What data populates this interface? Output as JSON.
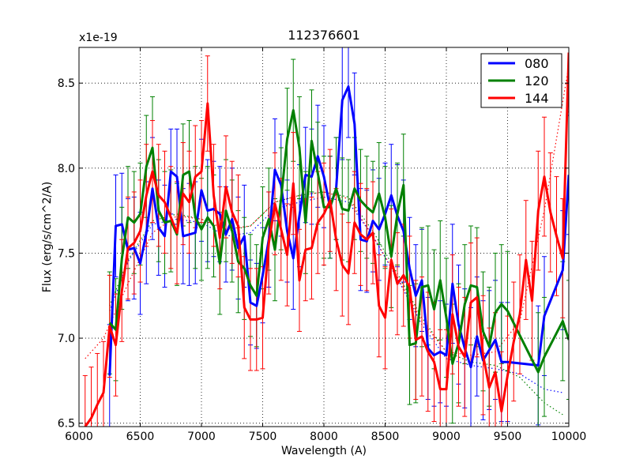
{
  "chart_data": {
    "type": "line",
    "title": "112376601",
    "xlabel": "Wavelength (A)",
    "ylabel": "Flux (erg/s/cm^2/A)",
    "offset_label": "x1e-19",
    "xlim": [
      6000,
      10000
    ],
    "ylim": [
      6.48,
      8.71
    ],
    "xticks": [
      6000,
      6500,
      7000,
      7500,
      8000,
      8500,
      9000,
      9500,
      10000
    ],
    "xtick_labels": [
      "6000",
      "6500",
      "7000",
      "7500",
      "8000",
      "8500",
      "9000",
      "9500",
      "10000"
    ],
    "yticks": [
      6.5,
      7.0,
      7.5,
      8.0,
      8.5
    ],
    "ytick_labels": [
      "6.5",
      "7.0",
      "7.5",
      "8.0",
      "8.5"
    ],
    "grid": true,
    "legend_position": "top-right",
    "series": [
      {
        "name": "080",
        "color": "#0000ff",
        "x": [
          6250,
          6300,
          6350,
          6400,
          6450,
          6500,
          6550,
          6600,
          6650,
          6700,
          6750,
          6800,
          6850,
          6900,
          6950,
          7000,
          7050,
          7100,
          7150,
          7200,
          7250,
          7300,
          7350,
          7400,
          7450,
          7500,
          7550,
          7600,
          7650,
          7700,
          7750,
          7800,
          7850,
          7900,
          7950,
          8000,
          8050,
          8100,
          8150,
          8200,
          8250,
          8300,
          8350,
          8400,
          8450,
          8500,
          8550,
          8600,
          8650,
          8700,
          8750,
          8800,
          8850,
          8900,
          8950,
          9000,
          9050,
          9100,
          9150,
          9200,
          9250,
          9300,
          9350,
          9400,
          9450,
          9500,
          9750,
          9800,
          9950,
          10000
        ],
        "y": [
          6.78,
          7.66,
          7.67,
          7.52,
          7.53,
          7.44,
          7.62,
          7.88,
          7.65,
          7.6,
          7.98,
          7.95,
          7.6,
          7.61,
          7.62,
          7.87,
          7.75,
          7.76,
          7.73,
          7.61,
          7.7,
          7.53,
          7.6,
          7.21,
          7.19,
          7.37,
          7.58,
          7.99,
          7.9,
          7.63,
          7.47,
          7.72,
          7.96,
          7.95,
          8.07,
          7.95,
          7.77,
          7.88,
          8.4,
          8.48,
          8.26,
          7.58,
          7.57,
          7.69,
          7.64,
          7.73,
          7.84,
          7.72,
          7.63,
          7.41,
          7.25,
          7.34,
          6.94,
          6.9,
          6.92,
          6.9,
          7.32,
          7.08,
          6.94,
          6.83,
          7.01,
          6.87,
          6.93,
          6.99,
          6.86,
          6.86,
          6.84,
          7.13,
          7.4,
          7.96
        ],
        "err": [
          0.3,
          0.3,
          0.3,
          0.3,
          0.3,
          0.3,
          0.3,
          0.3,
          0.28,
          0.3,
          0.25,
          0.28,
          0.28,
          0.3,
          0.3,
          0.3,
          0.3,
          0.28,
          0.28,
          0.28,
          0.3,
          0.3,
          0.3,
          0.25,
          0.25,
          0.28,
          0.28,
          0.3,
          0.3,
          0.3,
          0.3,
          0.3,
          0.28,
          0.28,
          0.3,
          0.3,
          0.3,
          0.3,
          0.35,
          0.3,
          0.3,
          0.3,
          0.3,
          0.3,
          0.3,
          0.3,
          0.3,
          0.3,
          0.3,
          0.3,
          0.3,
          0.3,
          0.3,
          0.3,
          0.3,
          0.3,
          0.35,
          0.35,
          0.35,
          0.35,
          0.35,
          0.35,
          0.35,
          0.35,
          0.35,
          0.35,
          0.35,
          0.35,
          0.35,
          0.35
        ]
      },
      {
        "name": "120",
        "color": "#008000",
        "x": [
          6250,
          6300,
          6350,
          6400,
          6450,
          6500,
          6550,
          6600,
          6650,
          6700,
          6750,
          6800,
          6850,
          6900,
          6950,
          7000,
          7050,
          7100,
          7150,
          7200,
          7250,
          7300,
          7350,
          7400,
          7450,
          7500,
          7550,
          7600,
          7650,
          7700,
          7750,
          7800,
          7850,
          7900,
          7950,
          8000,
          8050,
          8100,
          8150,
          8200,
          8250,
          8300,
          8350,
          8400,
          8450,
          8500,
          8550,
          8600,
          8650,
          8700,
          8750,
          8800,
          8850,
          8900,
          8950,
          9000,
          9050,
          9100,
          9150,
          9200,
          9250,
          9300,
          9350,
          9400,
          9450,
          9500,
          9750,
          9800,
          9950,
          10000
        ],
        "y": [
          7.09,
          7.05,
          7.47,
          7.71,
          7.68,
          7.73,
          8.01,
          8.12,
          7.75,
          7.68,
          7.69,
          7.61,
          7.96,
          7.98,
          7.71,
          7.64,
          7.71,
          7.66,
          7.44,
          7.75,
          7.63,
          7.45,
          7.41,
          7.31,
          7.25,
          7.59,
          7.7,
          7.52,
          7.82,
          8.17,
          8.34,
          8.12,
          7.68,
          8.16,
          7.97,
          7.77,
          7.77,
          7.88,
          7.76,
          7.75,
          7.88,
          7.81,
          7.77,
          7.74,
          7.85,
          7.71,
          7.48,
          7.73,
          7.9,
          6.96,
          6.97,
          7.3,
          7.31,
          7.17,
          7.34,
          7.12,
          6.85,
          6.97,
          7.2,
          7.31,
          7.3,
          7.04,
          6.95,
          7.15,
          7.2,
          7.16,
          6.8,
          6.89,
          7.1,
          6.99
        ],
        "err": [
          0.3,
          0.3,
          0.3,
          0.3,
          0.3,
          0.3,
          0.3,
          0.3,
          0.3,
          0.3,
          0.3,
          0.3,
          0.3,
          0.3,
          0.3,
          0.3,
          0.3,
          0.3,
          0.3,
          0.3,
          0.3,
          0.3,
          0.3,
          0.3,
          0.3,
          0.3,
          0.3,
          0.3,
          0.3,
          0.3,
          0.3,
          0.3,
          0.3,
          0.3,
          0.3,
          0.3,
          0.3,
          0.3,
          0.3,
          0.3,
          0.3,
          0.3,
          0.3,
          0.3,
          0.3,
          0.3,
          0.3,
          0.3,
          0.3,
          0.35,
          0.35,
          0.35,
          0.35,
          0.35,
          0.35,
          0.35,
          0.35,
          0.35,
          0.35,
          0.35,
          0.35,
          0.35,
          0.35,
          0.35,
          0.35,
          0.35,
          0.35,
          0.35,
          0.35,
          0.35
        ]
      },
      {
        "name": "144",
        "color": "#ff0000",
        "x": [
          6050,
          6100,
          6150,
          6200,
          6250,
          6300,
          6350,
          6400,
          6450,
          6500,
          6550,
          6600,
          6650,
          6700,
          6750,
          6800,
          6850,
          6900,
          6950,
          7000,
          7050,
          7100,
          7150,
          7200,
          7250,
          7300,
          7350,
          7400,
          7450,
          7500,
          7550,
          7600,
          7650,
          7700,
          7750,
          7800,
          7850,
          7900,
          7950,
          8000,
          8050,
          8100,
          8150,
          8200,
          8250,
          8300,
          8350,
          8400,
          8450,
          8500,
          8550,
          8600,
          8650,
          8700,
          8750,
          8800,
          8850,
          8900,
          8950,
          9000,
          9050,
          9100,
          9150,
          9200,
          9250,
          9300,
          9350,
          9400,
          9450,
          9500,
          9550,
          9600,
          9650,
          9700,
          9750,
          9800,
          9850,
          9900,
          9950,
          10000
        ],
        "y": [
          6.48,
          6.53,
          6.61,
          6.68,
          7.07,
          6.96,
          7.28,
          7.53,
          7.56,
          7.63,
          7.84,
          7.98,
          7.84,
          7.8,
          7.71,
          7.62,
          7.85,
          7.8,
          7.95,
          7.98,
          8.38,
          7.84,
          7.59,
          7.89,
          7.74,
          7.66,
          7.18,
          7.11,
          7.11,
          7.12,
          7.56,
          7.79,
          7.64,
          7.49,
          7.91,
          7.34,
          7.52,
          7.53,
          7.68,
          7.73,
          7.81,
          7.58,
          7.43,
          7.38,
          7.68,
          7.61,
          7.58,
          7.62,
          7.19,
          7.12,
          7.46,
          7.32,
          7.37,
          7.3,
          6.99,
          7.01,
          6.92,
          6.86,
          6.7,
          6.7,
          7.14,
          6.95,
          6.89,
          7.21,
          7.24,
          6.9,
          6.71,
          6.8,
          6.57,
          6.78,
          6.98,
          7.14,
          7.46,
          7.22,
          7.75,
          7.95,
          7.74,
          7.6,
          7.47,
          8.68
        ],
        "err": [
          0.3,
          0.3,
          0.3,
          0.3,
          0.3,
          0.3,
          0.3,
          0.3,
          0.3,
          0.3,
          0.3,
          0.3,
          0.3,
          0.3,
          0.3,
          0.3,
          0.3,
          0.3,
          0.3,
          0.3,
          0.28,
          0.3,
          0.3,
          0.3,
          0.3,
          0.3,
          0.3,
          0.3,
          0.3,
          0.3,
          0.3,
          0.3,
          0.3,
          0.3,
          0.3,
          0.3,
          0.3,
          0.3,
          0.3,
          0.3,
          0.3,
          0.3,
          0.3,
          0.3,
          0.3,
          0.3,
          0.3,
          0.3,
          0.3,
          0.3,
          0.3,
          0.3,
          0.3,
          0.3,
          0.35,
          0.35,
          0.35,
          0.35,
          0.35,
          0.35,
          0.35,
          0.35,
          0.35,
          0.35,
          0.35,
          0.35,
          0.35,
          0.35,
          0.35,
          0.35,
          0.35,
          0.35,
          0.35,
          0.35,
          0.35,
          0.35,
          0.35,
          0.35,
          0.35,
          0.35
        ]
      }
    ],
    "model_series": [
      {
        "name": "080 model",
        "color": "#0000ff",
        "x": [
          6250,
          6400,
          6600,
          6800,
          7000,
          7200,
          7400,
          7600,
          7800,
          8000,
          8200,
          8400,
          8600,
          8800,
          9000,
          9200,
          9400,
          9600,
          9800,
          9950
        ],
        "y": [
          7.16,
          7.45,
          7.67,
          7.7,
          7.68,
          7.6,
          7.62,
          7.76,
          7.8,
          7.83,
          7.8,
          7.6,
          7.35,
          7.08,
          6.88,
          6.84,
          6.82,
          6.79,
          6.7,
          6.68
        ]
      },
      {
        "name": "120 model",
        "color": "#008000",
        "x": [
          6250,
          6400,
          6600,
          6800,
          7000,
          7200,
          7400,
          7600,
          7800,
          8000,
          8200,
          8400,
          8600,
          8800,
          9000,
          9200,
          9400,
          9600,
          9800,
          9950
        ],
        "y": [
          7.19,
          7.46,
          7.69,
          7.73,
          7.7,
          7.63,
          7.66,
          7.8,
          7.84,
          7.86,
          7.83,
          7.63,
          7.38,
          7.12,
          6.92,
          6.86,
          6.84,
          6.77,
          6.62,
          6.55
        ]
      },
      {
        "name": "144 model",
        "color": "#ff0000",
        "x": [
          6050,
          6200,
          6400,
          6600,
          6800,
          7000,
          7200,
          7400,
          7600,
          7800,
          8000,
          8200,
          8400,
          8600,
          8800,
          9000,
          9200,
          9400,
          9600,
          9800,
          10000
        ],
        "y": [
          6.88,
          7.0,
          7.32,
          7.62,
          7.72,
          7.7,
          7.64,
          7.66,
          7.8,
          7.84,
          7.86,
          7.82,
          7.6,
          7.36,
          7.1,
          6.92,
          6.9,
          6.92,
          7.1,
          7.75,
          8.6
        ]
      }
    ]
  }
}
